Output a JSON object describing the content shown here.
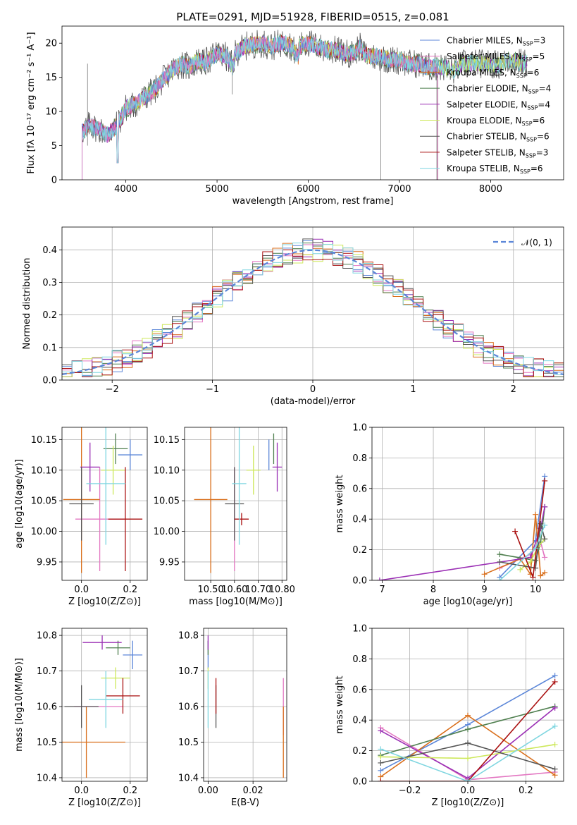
{
  "figure": {
    "title": "PLATE=0291, MJD=51928, FIBERID=0515, z=0.081"
  },
  "colors": {
    "Chabrier MILES": "#5b86d8",
    "Salpeter MILES": "#e377c2",
    "Kroupa MILES": "#d96f1c",
    "Chabrier ELODIE": "#4f7f4f",
    "Salpeter ELODIE": "#9b30b5",
    "Kroupa ELODIE": "#cde85a",
    "Chabrier STELIB": "#555555",
    "Salpeter STELIB": "#aa1111",
    "Kroupa STELIB": "#7fd6e0"
  },
  "chart_data": [
    {
      "id": "spectrum",
      "type": "line",
      "title": "PLATE=0291, MJD=51928, FIBERID=0515, z=0.081",
      "xlabel": "wavelength [Angstrom, rest frame]",
      "ylabel": "Flux [fλ 10⁻¹⁷ erg cm⁻² s⁻¹ A⁻¹]",
      "xlim": [
        3300,
        8800
      ],
      "ylim": [
        0,
        22.5
      ],
      "xticks": [
        4000,
        5000,
        6000,
        7000,
        8000
      ],
      "yticks": [
        0,
        5,
        10,
        15,
        20
      ],
      "grid": false,
      "legend_position": "right",
      "legend": [
        {
          "label": "Chabrier MILES, N",
          "sub": "SSP",
          "tail": "=3",
          "key": "Chabrier MILES"
        },
        {
          "label": "Salpeter MILES, N",
          "sub": "SSP",
          "tail": "=5",
          "key": "Salpeter MILES"
        },
        {
          "label": "Kroupa MILES, N",
          "sub": "SSP",
          "tail": "=6",
          "key": "Kroupa MILES"
        },
        {
          "label": "Chabrier ELODIE, N",
          "sub": "SSP",
          "tail": "=4",
          "key": "Chabrier ELODIE"
        },
        {
          "label": "Salpeter ELODIE, N",
          "sub": "SSP",
          "tail": "=4",
          "key": "Salpeter ELODIE"
        },
        {
          "label": "Kroupa ELODIE, N",
          "sub": "SSP",
          "tail": "=6",
          "key": "Kroupa ELODIE"
        },
        {
          "label": "Chabrier STELIB, N",
          "sub": "SSP",
          "tail": "=6",
          "key": "Chabrier STELIB"
        },
        {
          "label": "Salpeter STELIB, N",
          "sub": "SSP",
          "tail": "=3",
          "key": "Salpeter STELIB"
        },
        {
          "label": "Kroupa STELIB, N",
          "sub": "SSP",
          "tail": "=6",
          "key": "Kroupa STELIB"
        }
      ],
      "data_spectrum": {
        "x": [
          3520,
          3600,
          3700,
          3800,
          3900,
          3950,
          4000,
          4100,
          4200,
          4300,
          4400,
          4500,
          4600,
          4700,
          4800,
          4861,
          4900,
          5000,
          5100,
          5175,
          5200,
          5300,
          5400,
          5500,
          5600,
          5700,
          5800,
          5890,
          5900,
          6000,
          6100,
          6200,
          6300,
          6400,
          6500,
          6563,
          6600,
          6700,
          6800,
          6900,
          7000,
          7100,
          7200,
          7300,
          7400,
          7500,
          7600,
          7700,
          7800,
          7900,
          8000,
          8100,
          8200,
          8300,
          8400
        ],
        "y": [
          7.0,
          8.0,
          7.5,
          6.5,
          8.0,
          9.0,
          10.5,
          11.0,
          12.0,
          13.0,
          14.5,
          16.0,
          17.0,
          16.5,
          17.5,
          17.0,
          17.5,
          18.5,
          18.0,
          16.5,
          18.5,
          19.5,
          19.8,
          20.0,
          19.5,
          20.0,
          19.8,
          18.0,
          19.5,
          20.0,
          19.5,
          19.0,
          19.0,
          18.5,
          18.5,
          19.5,
          18.5,
          18.0,
          18.0,
          17.5,
          17.5,
          17.0,
          17.0,
          16.5,
          16.5,
          16.5,
          16.0,
          17.0,
          17.0,
          17.0,
          17.0,
          16.8,
          17.5,
          17.2,
          17.0
        ]
      }
    },
    {
      "id": "residuals",
      "type": "line",
      "xlabel": "(data-model)/error",
      "ylabel": "Normed distribution",
      "xlim": [
        -2.5,
        2.5
      ],
      "ylim": [
        0,
        0.47
      ],
      "xticks": [
        -2,
        -1,
        0,
        1,
        2
      ],
      "yticks": [
        0.0,
        0.1,
        0.2,
        0.3,
        0.4
      ],
      "grid": true,
      "legend_position": "top-right",
      "legend": [
        {
          "label": "𝒩(0, 1)",
          "style": "dashed"
        }
      ],
      "reference_curve": "standard normal, mean 0, sigma 1",
      "histogram_bin_edges_note": "bins of width 0.1 from -2.5 to 2.5"
    },
    {
      "id": "age_vs_Z",
      "type": "scatter",
      "xlabel": "Z [log10(Z/Z⊙)]",
      "ylabel": "age  [log10(age/yr)]",
      "xlim": [
        -0.08,
        0.27
      ],
      "ylim": [
        9.92,
        10.17
      ],
      "xticks": [
        0.0,
        0.2
      ],
      "yticks": [
        9.95,
        10.0,
        10.05,
        10.1,
        10.15
      ],
      "grid": true,
      "series": [
        {
          "key": "Chabrier MILES",
          "x": 0.2,
          "y": 10.125,
          "xerr": 0.05,
          "yerr": 0.025
        },
        {
          "key": "Salpeter MILES",
          "x": 0.075,
          "y": 10.02,
          "xerr": 0.1,
          "yerr": 0.085
        },
        {
          "key": "Kroupa MILES",
          "x": 0.0,
          "y": 10.052,
          "xerr": 0.075,
          "yerr": 0.12
        },
        {
          "key": "Chabrier ELODIE",
          "x": 0.14,
          "y": 10.135,
          "xerr": 0.05,
          "yerr": 0.025
        },
        {
          "key": "Salpeter ELODIE",
          "x": 0.035,
          "y": 10.105,
          "xerr": 0.04,
          "yerr": 0.04
        },
        {
          "key": "Kroupa ELODIE",
          "x": 0.13,
          "y": 10.1,
          "xerr": 0.05,
          "yerr": 0.04
        },
        {
          "key": "Chabrier STELIB",
          "x": 0.0,
          "y": 10.045,
          "xerr": 0.05,
          "yerr": 0.06
        },
        {
          "key": "Salpeter STELIB",
          "x": 0.18,
          "y": 10.02,
          "xerr": 0.07,
          "yerr": 0.085
        },
        {
          "key": "Kroupa STELIB",
          "x": 0.1,
          "y": 10.078,
          "xerr": 0.08,
          "yerr": 0.1
        }
      ]
    },
    {
      "id": "age_vs_mass",
      "type": "scatter",
      "xlabel": "mass [log10(M/M⊙)]",
      "ylabel": "",
      "xlim": [
        10.39,
        10.82
      ],
      "ylim": [
        9.92,
        10.17
      ],
      "xticks": [
        10.5,
        10.6,
        10.7,
        10.8
      ],
      "yticks": [
        9.95,
        10.0,
        10.05,
        10.1,
        10.15
      ],
      "grid": true,
      "series": [
        {
          "key": "Chabrier MILES",
          "x": 10.745,
          "y": 10.125,
          "xerr": 0.0,
          "yerr": 0.025
        },
        {
          "key": "Salpeter MILES",
          "x": 10.6,
          "y": 10.02,
          "xerr": 0.0,
          "yerr": 0.085
        },
        {
          "key": "Kroupa MILES",
          "x": 10.5,
          "y": 10.052,
          "xerr": 0.07,
          "yerr": 0.12
        },
        {
          "key": "Chabrier ELODIE",
          "x": 10.765,
          "y": 10.135,
          "xerr": 0.0,
          "yerr": 0.025
        },
        {
          "key": "Salpeter ELODIE",
          "x": 10.78,
          "y": 10.105,
          "xerr": 0.02,
          "yerr": 0.04
        },
        {
          "key": "Kroupa ELODIE",
          "x": 10.68,
          "y": 10.1,
          "xerr": 0.03,
          "yerr": 0.04
        },
        {
          "key": "Chabrier STELIB",
          "x": 10.6,
          "y": 10.045,
          "xerr": 0.04,
          "yerr": 0.06
        },
        {
          "key": "Salpeter STELIB",
          "x": 10.63,
          "y": 10.02,
          "xerr": 0.03,
          "yerr": 0.01
        },
        {
          "key": "Kroupa STELIB",
          "x": 10.62,
          "y": 10.078,
          "xerr": 0.03,
          "yerr": 0.1
        }
      ]
    },
    {
      "id": "massweight_vs_age",
      "type": "line",
      "xlabel": "age  [log10(age/yr)]",
      "ylabel": "mass weight",
      "xlim": [
        6.8,
        10.55
      ],
      "ylim": [
        0,
        1
      ],
      "xticks": [
        7,
        8,
        9,
        10
      ],
      "yticks": [
        0.0,
        0.2,
        0.4,
        0.6,
        0.8,
        1.0
      ],
      "grid": true,
      "series": [
        {
          "key": "Chabrier MILES",
          "x": [
            9.3,
            10.0,
            10.18
          ],
          "y": [
            0.02,
            0.26,
            0.68
          ]
        },
        {
          "key": "Salpeter MILES",
          "x": [
            9.3,
            9.9,
            10.1,
            10.18
          ],
          "y": [
            0.08,
            0.17,
            0.25,
            0.15
          ]
        },
        {
          "key": "Kroupa MILES",
          "x": [
            9.0,
            9.7,
            9.9,
            10.0,
            10.1,
            10.18
          ],
          "y": [
            0.04,
            0.14,
            0.04,
            0.43,
            0.03,
            0.05
          ]
        },
        {
          "key": "Chabrier ELODIE",
          "x": [
            9.3,
            10.0,
            10.1,
            10.18
          ],
          "y": [
            0.17,
            0.13,
            0.25,
            0.48
          ]
        },
        {
          "key": "Salpeter ELODIE",
          "x": [
            6.95,
            9.9,
            10.1,
            10.18
          ],
          "y": [
            0.0,
            0.15,
            0.34,
            0.48
          ]
        },
        {
          "key": "Kroupa ELODIE",
          "x": [
            9.7,
            9.9,
            10.05,
            10.18
          ],
          "y": [
            0.07,
            0.12,
            0.22,
            0.27
          ]
        },
        {
          "key": "Chabrier STELIB",
          "x": [
            9.3,
            10.0,
            10.1,
            10.18
          ],
          "y": [
            0.12,
            0.08,
            0.37,
            0.27
          ]
        },
        {
          "key": "Salpeter STELIB",
          "x": [
            9.6,
            9.95,
            10.18
          ],
          "y": [
            0.32,
            0.02,
            0.65
          ]
        },
        {
          "key": "Kroupa STELIB",
          "x": [
            9.3,
            10.0,
            10.18
          ],
          "y": [
            0.0,
            0.21,
            0.36
          ]
        }
      ]
    },
    {
      "id": "mass_vs_Z",
      "type": "scatter",
      "xlabel": "Z [log10(Z/Z⊙)]",
      "ylabel": "mass [log10(M/M⊙)]",
      "xlim": [
        -0.08,
        0.27
      ],
      "ylim": [
        10.39,
        10.82
      ],
      "xticks": [
        0.0,
        0.2
      ],
      "yticks": [
        10.4,
        10.5,
        10.6,
        10.7,
        10.8
      ],
      "grid": true,
      "series": [
        {
          "key": "Chabrier MILES",
          "x": 0.21,
          "y": 10.745,
          "xerr": 0.04,
          "yerr": 0.04
        },
        {
          "key": "Salpeter MILES",
          "x": 0.07,
          "y": 10.6,
          "xerr": 0.1,
          "yerr": 0.0
        },
        {
          "key": "Kroupa MILES",
          "x": 0.02,
          "y": 10.5,
          "xerr": 0.16,
          "yerr": 0.1
        },
        {
          "key": "Chabrier ELODIE",
          "x": 0.15,
          "y": 10.765,
          "xerr": 0.05,
          "yerr": 0.02
        },
        {
          "key": "Salpeter ELODIE",
          "x": 0.085,
          "y": 10.78,
          "xerr": 0.08,
          "yerr": 0.02
        },
        {
          "key": "Kroupa ELODIE",
          "x": 0.14,
          "y": 10.68,
          "xerr": 0.06,
          "yerr": 0.03
        },
        {
          "key": "Chabrier STELIB",
          "x": 0.0,
          "y": 10.6,
          "xerr": 0.07,
          "yerr": 0.06
        },
        {
          "key": "Salpeter STELIB",
          "x": 0.17,
          "y": 10.63,
          "xerr": 0.07,
          "yerr": 0.05
        },
        {
          "key": "Kroupa STELIB",
          "x": 0.1,
          "y": 10.62,
          "xerr": 0.07,
          "yerr": 0.08
        }
      ]
    },
    {
      "id": "mass_vs_EBV",
      "type": "scatter",
      "xlabel": "E(B-V)",
      "ylabel": "",
      "xlim": [
        -0.002,
        0.035
      ],
      "ylim": [
        10.39,
        10.82
      ],
      "xticks": [
        0.0,
        0.02
      ],
      "yticks": [
        10.4,
        10.5,
        10.6,
        10.7,
        10.8
      ],
      "grid": true,
      "series": [
        {
          "key": "Chabrier MILES",
          "x": 0.0,
          "y": 10.745,
          "xerr": 0.0,
          "yerr": 0.04
        },
        {
          "key": "Salpeter MILES",
          "x": 0.0335,
          "y": 10.6,
          "xerr": 0.0,
          "yerr": 0.08
        },
        {
          "key": "Kroupa MILES",
          "x": 0.0335,
          "y": 10.5,
          "xerr": 0.0,
          "yerr": 0.1
        },
        {
          "key": "Chabrier ELODIE",
          "x": 0.0,
          "y": 10.765,
          "xerr": 0.0,
          "yerr": 0.02
        },
        {
          "key": "Salpeter ELODIE",
          "x": 0.0,
          "y": 10.78,
          "xerr": 0.0,
          "yerr": 0.02
        },
        {
          "key": "Kroupa ELODIE",
          "x": 0.0,
          "y": 10.68,
          "xerr": 0.0,
          "yerr": 0.03
        },
        {
          "key": "Chabrier STELIB",
          "x": 0.0035,
          "y": 10.6,
          "xerr": 0.0,
          "yerr": 0.06
        },
        {
          "key": "Salpeter STELIB",
          "x": 0.0035,
          "y": 10.63,
          "xerr": 0.0,
          "yerr": 0.05
        },
        {
          "key": "Kroupa STELIB",
          "x": 0.0,
          "y": 10.62,
          "xerr": 0.0,
          "yerr": 0.08
        }
      ]
    },
    {
      "id": "massweight_vs_Z",
      "type": "line",
      "xlabel": "Z [log10(Z/Z⊙)]",
      "ylabel": "mass weight",
      "xlim": [
        -0.33,
        0.33
      ],
      "ylim": [
        0,
        1
      ],
      "xticks": [
        -0.2,
        0.0,
        0.2
      ],
      "yticks": [
        0.0,
        0.2,
        0.4,
        0.6,
        0.8,
        1.0
      ],
      "grid": true,
      "series": [
        {
          "key": "Chabrier MILES",
          "x": [
            -0.3,
            0.0,
            0.3
          ],
          "y": [
            0.07,
            0.37,
            0.69
          ]
        },
        {
          "key": "Salpeter MILES",
          "x": [
            -0.3,
            0.0,
            0.3
          ],
          "y": [
            0.35,
            0.01,
            0.06
          ]
        },
        {
          "key": "Kroupa MILES",
          "x": [
            -0.3,
            0.0,
            0.3
          ],
          "y": [
            0.03,
            0.43,
            0.04
          ]
        },
        {
          "key": "Chabrier ELODIE",
          "x": [
            -0.3,
            0.0,
            0.3
          ],
          "y": [
            0.17,
            0.34,
            0.49
          ]
        },
        {
          "key": "Salpeter ELODIE",
          "x": [
            -0.3,
            0.0,
            0.3
          ],
          "y": [
            0.33,
            0.02,
            0.48
          ]
        },
        {
          "key": "Kroupa ELODIE",
          "x": [
            -0.3,
            0.0,
            0.3
          ],
          "y": [
            0.16,
            0.15,
            0.24
          ]
        },
        {
          "key": "Chabrier STELIB",
          "x": [
            -0.3,
            0.0,
            0.3
          ],
          "y": [
            0.12,
            0.25,
            0.08
          ]
        },
        {
          "key": "Salpeter STELIB",
          "x": [
            -0.3,
            0.0,
            0.3
          ],
          "y": [
            0.0,
            0.0,
            0.65
          ]
        },
        {
          "key": "Kroupa STELIB",
          "x": [
            -0.3,
            0.0,
            0.3
          ],
          "y": [
            0.21,
            0.0,
            0.36
          ]
        }
      ]
    }
  ]
}
